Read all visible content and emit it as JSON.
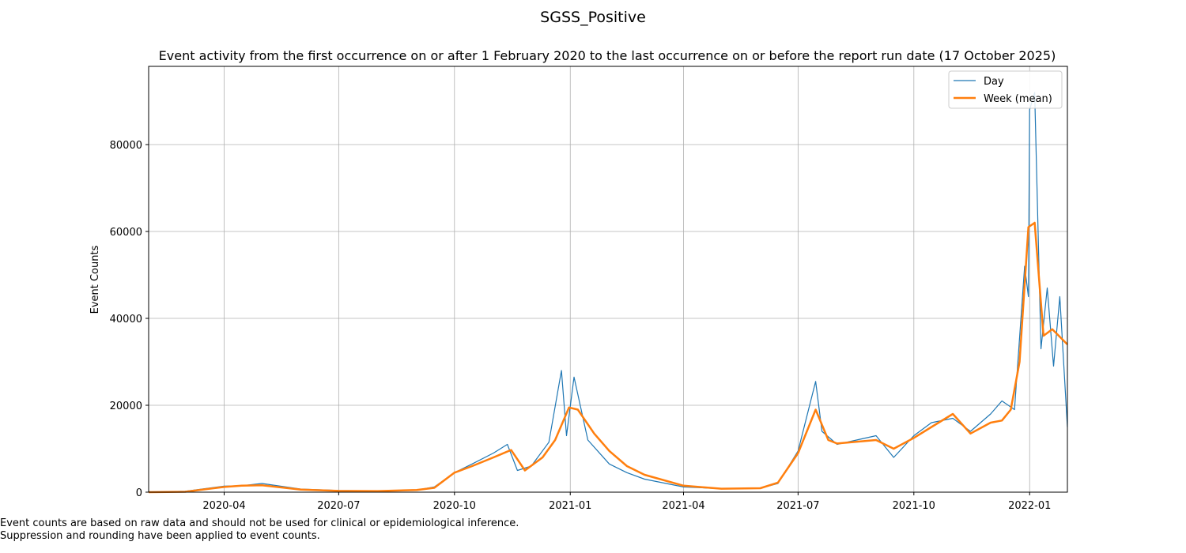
{
  "chart_data": {
    "type": "line",
    "suptitle": "SGSS_Positive",
    "title": "Event activity from the first occurrence on or after 1 February 2020 to the last occurrence on or before the report run date (17 October 2025)",
    "xlabel": "",
    "ylabel": "Event Counts",
    "xlim": [
      "2020-02-01",
      "2022-01-31"
    ],
    "ylim": [
      0,
      98000
    ],
    "xticks": [
      "2020-04",
      "2020-07",
      "2020-10",
      "2021-01",
      "2021-04",
      "2021-07",
      "2021-10",
      "2022-01"
    ],
    "yticks": [
      0,
      20000,
      40000,
      60000,
      80000
    ],
    "grid": true,
    "legend_position": "top-right",
    "colors": {
      "day": "#1f77b4",
      "week": "#ff7f0e",
      "grid": "#b0b0b0"
    },
    "series": [
      {
        "name": "Day",
        "x": [
          "2020-02-01",
          "2020-03-01",
          "2020-04-01",
          "2020-04-15",
          "2020-05-01",
          "2020-06-01",
          "2020-07-01",
          "2020-08-01",
          "2020-09-01",
          "2020-09-15",
          "2020-10-01",
          "2020-10-15",
          "2020-11-01",
          "2020-11-12",
          "2020-11-20",
          "2020-12-01",
          "2020-12-15",
          "2020-12-25",
          "2020-12-29",
          "2021-01-04",
          "2021-01-15",
          "2021-02-01",
          "2021-02-15",
          "2021-03-01",
          "2021-04-01",
          "2021-05-01",
          "2021-06-01",
          "2021-06-15",
          "2021-07-01",
          "2021-07-15",
          "2021-07-20",
          "2021-08-01",
          "2021-09-01",
          "2021-09-15",
          "2021-10-01",
          "2021-10-15",
          "2021-11-01",
          "2021-11-15",
          "2021-12-01",
          "2021-12-10",
          "2021-12-20",
          "2021-12-28",
          "2021-12-31",
          "2022-01-01",
          "2022-01-05",
          "2022-01-10",
          "2022-01-15",
          "2022-01-20",
          "2022-01-25",
          "2022-01-31"
        ],
        "values": [
          0,
          200,
          1400,
          1500,
          2000,
          700,
          400,
          300,
          500,
          1200,
          4500,
          6500,
          9000,
          11000,
          5000,
          6000,
          11500,
          28000,
          13000,
          26500,
          12000,
          6500,
          4500,
          3000,
          1200,
          800,
          900,
          2000,
          9500,
          25500,
          14000,
          11000,
          13000,
          8000,
          13000,
          16000,
          17000,
          14000,
          18000,
          21000,
          19000,
          52000,
          45000,
          88000,
          92000,
          33000,
          47000,
          29000,
          45000,
          15000
        ]
      },
      {
        "name": "Week (mean)",
        "x": [
          "2020-02-01",
          "2020-03-01",
          "2020-04-01",
          "2020-04-15",
          "2020-05-01",
          "2020-06-01",
          "2020-07-01",
          "2020-08-01",
          "2020-09-01",
          "2020-09-15",
          "2020-10-01",
          "2020-10-15",
          "2020-11-01",
          "2020-11-15",
          "2020-11-26",
          "2020-12-10",
          "2020-12-20",
          "2020-12-31",
          "2021-01-07",
          "2021-01-20",
          "2021-02-01",
          "2021-02-15",
          "2021-03-01",
          "2021-04-01",
          "2021-05-01",
          "2021-06-01",
          "2021-06-15",
          "2021-07-01",
          "2021-07-15",
          "2021-07-25",
          "2021-08-01",
          "2021-09-01",
          "2021-09-15",
          "2021-10-01",
          "2021-10-15",
          "2021-11-01",
          "2021-11-15",
          "2021-12-01",
          "2021-12-10",
          "2021-12-17",
          "2021-12-24",
          "2021-12-31",
          "2022-01-05",
          "2022-01-12",
          "2022-01-19",
          "2022-01-31"
        ],
        "values": [
          0,
          100,
          1200,
          1500,
          1600,
          600,
          300,
          250,
          500,
          1000,
          4500,
          6000,
          8000,
          9700,
          5000,
          8000,
          12000,
          19500,
          19000,
          13500,
          9500,
          6000,
          4000,
          1500,
          800,
          900,
          2200,
          9000,
          19000,
          12000,
          11200,
          12000,
          10000,
          12500,
          15000,
          18000,
          13500,
          16000,
          16500,
          19000,
          30000,
          61000,
          62000,
          36000,
          37500,
          34000
        ]
      }
    ]
  },
  "footnotes": [
    "Event counts are based on raw data and should not be used for clinical or epidemiological inference.",
    "Suppression and rounding have been applied to event counts."
  ]
}
